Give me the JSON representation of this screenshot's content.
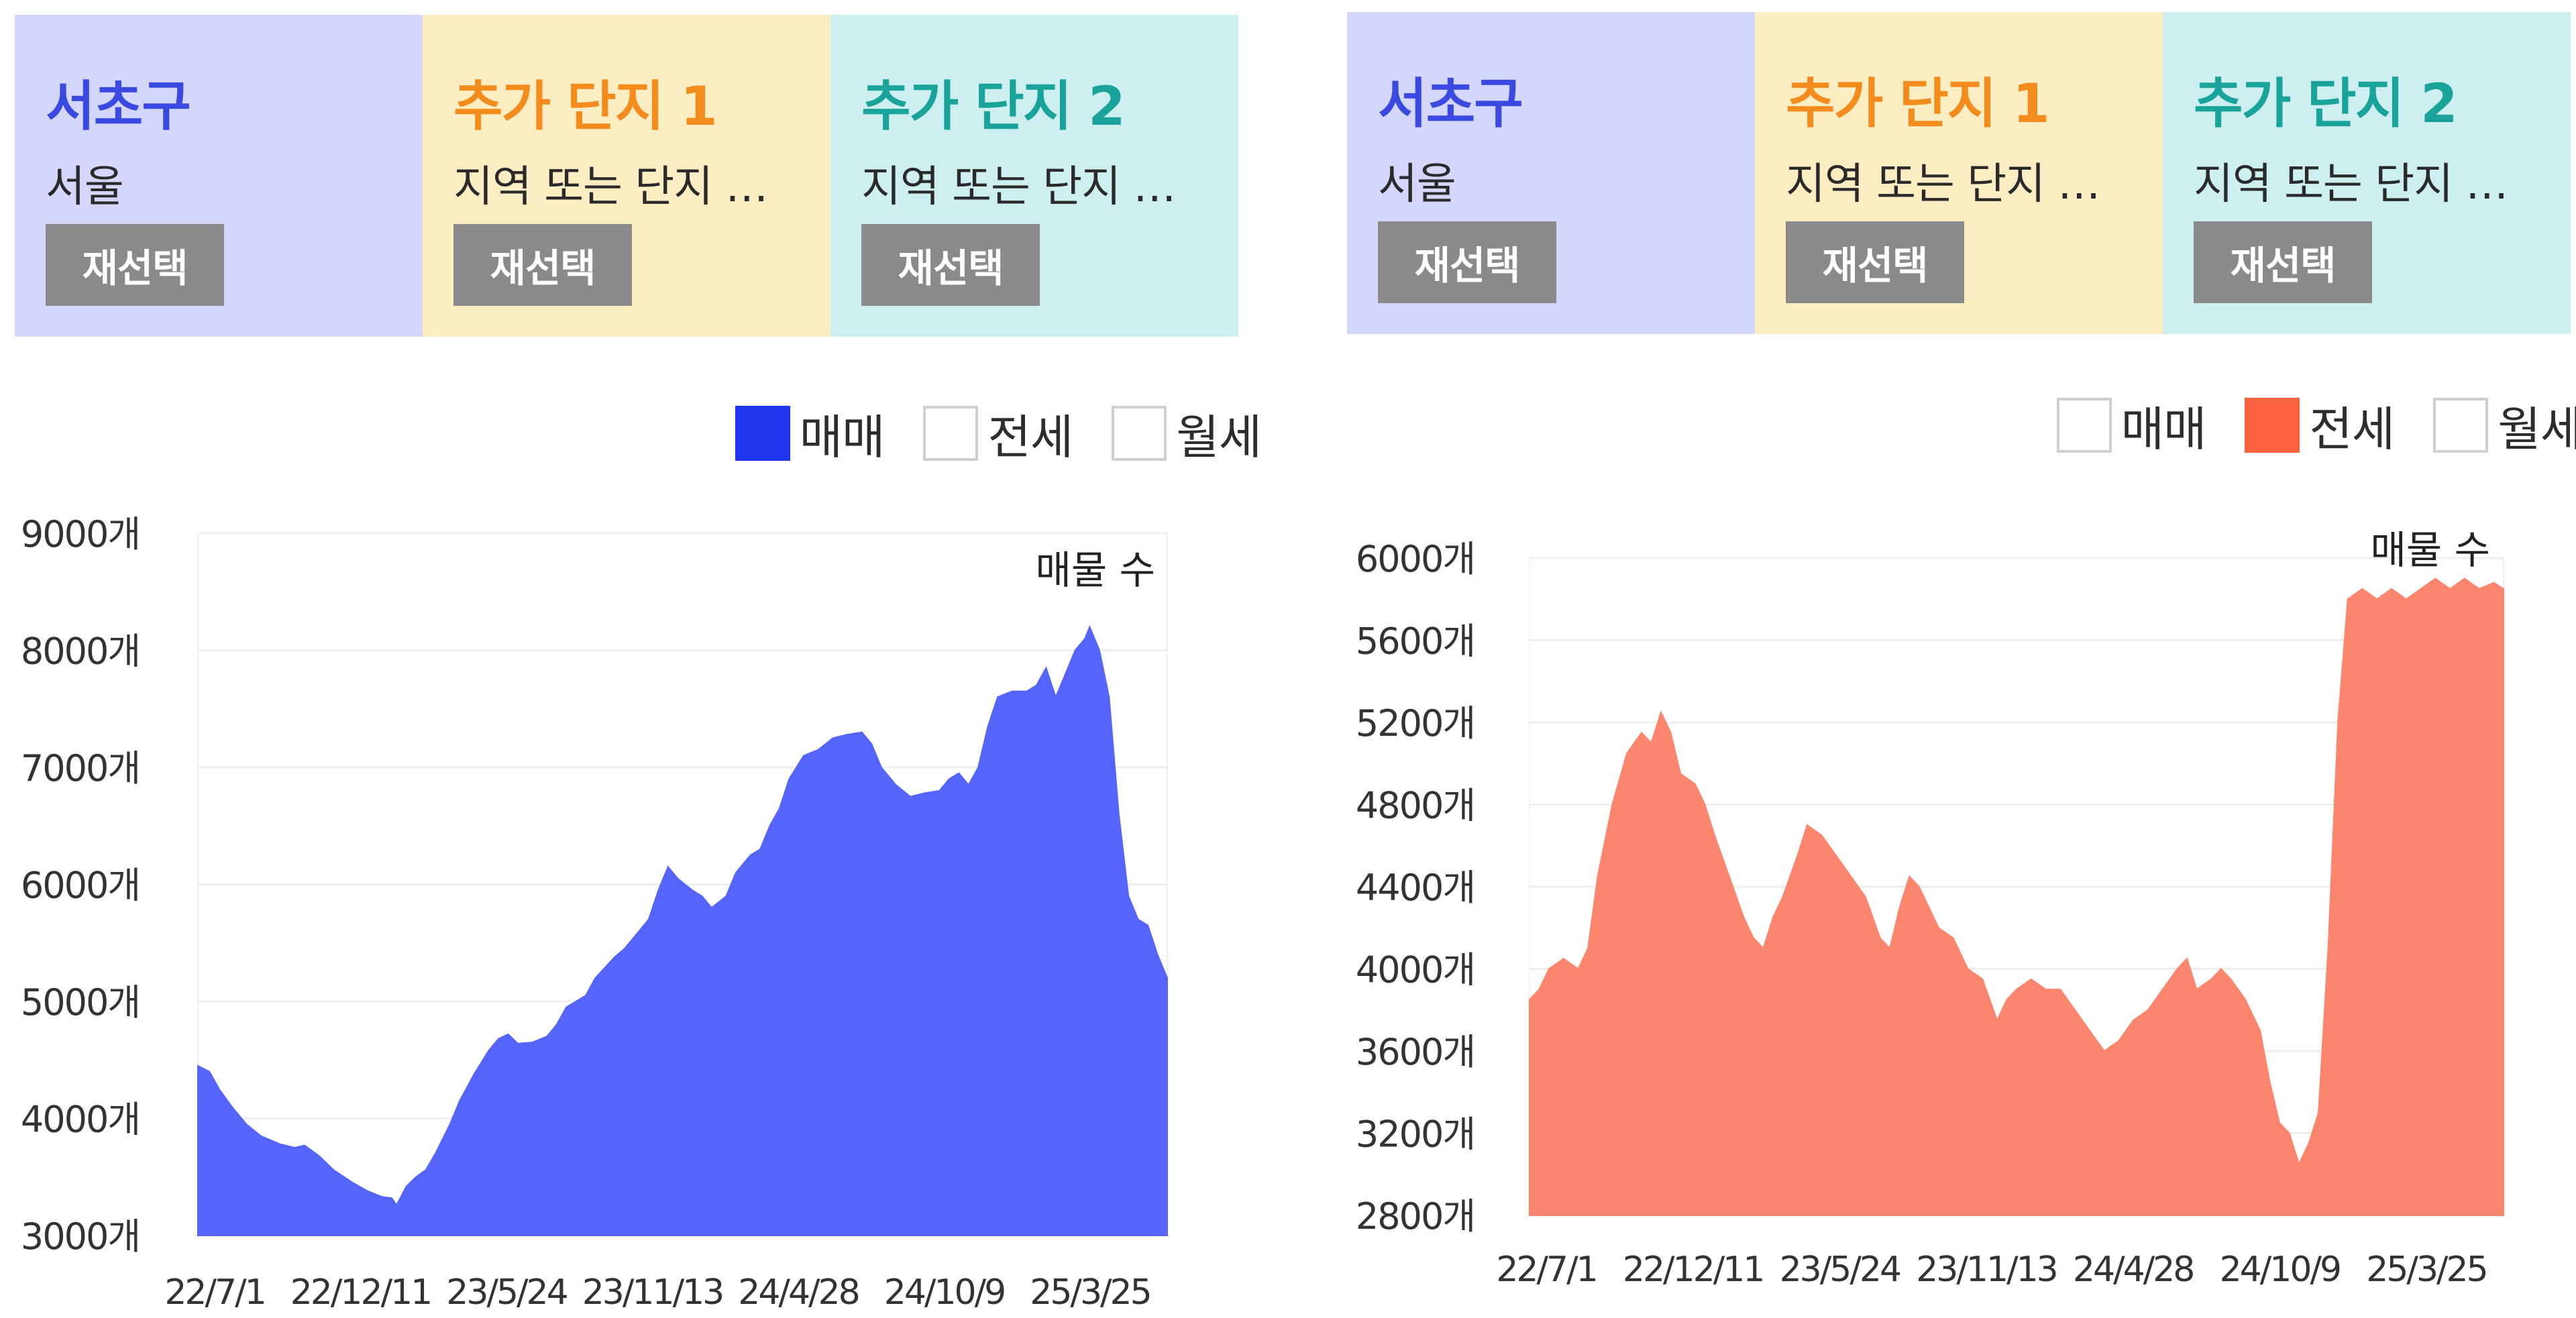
{
  "panels": [
    {
      "cards": [
        {
          "title": "서초구",
          "subtitle": "서울",
          "button": "재선택",
          "bg": "#d4d7fb",
          "titleColor": "#3a49e0"
        },
        {
          "title": "추가 단지 1",
          "subtitle": "지역 또는 단지 …",
          "button": "재선택",
          "bg": "#fdedc2",
          "titleColor": "#f38b1d"
        },
        {
          "title": "추가 단지 2",
          "subtitle": "지역 또는 단지 …",
          "button": "재선택",
          "bg": "#cdeff0",
          "titleColor": "#1aa39a"
        }
      ],
      "legend": [
        {
          "label": "매매",
          "checked": true,
          "color": "#1f36ee"
        },
        {
          "label": "전세",
          "checked": false,
          "color": "#f9613f"
        },
        {
          "label": "월세",
          "checked": false,
          "color": "#999999"
        }
      ]
    },
    {
      "cards": [
        {
          "title": "서초구",
          "subtitle": "서울",
          "button": "재선택",
          "bg": "#d4d7fb",
          "titleColor": "#3a49e0"
        },
        {
          "title": "추가 단지 1",
          "subtitle": "지역 또는 단지 …",
          "button": "재선택",
          "bg": "#fdedc2",
          "titleColor": "#f38b1d"
        },
        {
          "title": "추가 단지 2",
          "subtitle": "지역 또는 단지 …",
          "button": "재선택",
          "bg": "#cdeff0",
          "titleColor": "#1aa39a"
        }
      ],
      "legend": [
        {
          "label": "매매",
          "checked": false,
          "color": "#1f36ee"
        },
        {
          "label": "전세",
          "checked": true,
          "color": "#f9613f"
        },
        {
          "label": "월세",
          "checked": false,
          "color": "#999999"
        }
      ]
    }
  ],
  "chart_data": [
    {
      "type": "area",
      "series": [
        {
          "name": "매매",
          "color": "#5565f9"
        }
      ],
      "annotation": "매물 수",
      "y_unit": "개",
      "yticks": [
        3000,
        4000,
        5000,
        6000,
        7000,
        8000,
        9000
      ],
      "ylim": [
        3000,
        9000
      ],
      "x_ticks": [
        "22/7/1",
        "22/12/11",
        "23/5/24",
        "23/11/13",
        "24/4/28",
        "24/10/9",
        "25/3/25"
      ],
      "grid": true,
      "points": [
        [
          0,
          4450
        ],
        [
          0.012,
          4400
        ],
        [
          0.022,
          4250
        ],
        [
          0.035,
          4100
        ],
        [
          0.05,
          3950
        ],
        [
          0.065,
          3850
        ],
        [
          0.085,
          3780
        ],
        [
          0.1,
          3750
        ],
        [
          0.11,
          3770
        ],
        [
          0.125,
          3680
        ],
        [
          0.14,
          3560
        ],
        [
          0.16,
          3450
        ],
        [
          0.175,
          3380
        ],
        [
          0.19,
          3330
        ],
        [
          0.2,
          3320
        ],
        [
          0.205,
          3260
        ],
        [
          0.215,
          3420
        ],
        [
          0.225,
          3500
        ],
        [
          0.235,
          3560
        ],
        [
          0.245,
          3700
        ],
        [
          0.26,
          3950
        ],
        [
          0.27,
          4150
        ],
        [
          0.285,
          4380
        ],
        [
          0.3,
          4580
        ],
        [
          0.31,
          4680
        ],
        [
          0.32,
          4720
        ],
        [
          0.33,
          4640
        ],
        [
          0.345,
          4650
        ],
        [
          0.36,
          4700
        ],
        [
          0.37,
          4800
        ],
        [
          0.38,
          4950
        ],
        [
          0.4,
          5050
        ],
        [
          0.41,
          5200
        ],
        [
          0.43,
          5380
        ],
        [
          0.44,
          5450
        ],
        [
          0.455,
          5600
        ],
        [
          0.465,
          5700
        ],
        [
          0.475,
          5950
        ],
        [
          0.485,
          6150
        ],
        [
          0.495,
          6050
        ],
        [
          0.51,
          5950
        ],
        [
          0.52,
          5900
        ],
        [
          0.53,
          5800
        ],
        [
          0.545,
          5900
        ],
        [
          0.555,
          6100
        ],
        [
          0.57,
          6250
        ],
        [
          0.58,
          6300
        ],
        [
          0.59,
          6500
        ],
        [
          0.6,
          6650
        ],
        [
          0.61,
          6900
        ],
        [
          0.625,
          7100
        ],
        [
          0.64,
          7150
        ],
        [
          0.655,
          7250
        ],
        [
          0.67,
          7280
        ],
        [
          0.685,
          7300
        ],
        [
          0.695,
          7200
        ],
        [
          0.705,
          7000
        ],
        [
          0.72,
          6850
        ],
        [
          0.735,
          6750
        ],
        [
          0.75,
          6780
        ],
        [
          0.765,
          6800
        ],
        [
          0.775,
          6900
        ],
        [
          0.785,
          6950
        ],
        [
          0.795,
          6850
        ],
        [
          0.805,
          7000
        ],
        [
          0.815,
          7350
        ],
        [
          0.825,
          7600
        ],
        [
          0.84,
          7650
        ],
        [
          0.855,
          7650
        ],
        [
          0.865,
          7700
        ],
        [
          0.875,
          7850
        ],
        [
          0.885,
          7600
        ],
        [
          0.895,
          7800
        ],
        [
          0.905,
          8000
        ],
        [
          0.915,
          8100
        ],
        [
          0.92,
          8200
        ],
        [
          0.93,
          8000
        ],
        [
          0.94,
          7600
        ],
        [
          0.95,
          6600
        ],
        [
          0.96,
          5900
        ],
        [
          0.97,
          5700
        ],
        [
          0.98,
          5650
        ],
        [
          0.99,
          5400
        ],
        [
          1.0,
          5200
        ]
      ]
    },
    {
      "type": "area",
      "series": [
        {
          "name": "전세",
          "color": "#fc866d"
        }
      ],
      "annotation": "매물 수",
      "y_unit": "개",
      "yticks": [
        2800,
        3200,
        3600,
        4000,
        4400,
        4800,
        5200,
        5600,
        6000
      ],
      "ylim": [
        2800,
        6000
      ],
      "x_ticks": [
        "22/7/1",
        "22/12/11",
        "23/5/24",
        "23/11/13",
        "24/4/28",
        "24/10/9",
        "25/3/25"
      ],
      "grid": true,
      "points": [
        [
          0,
          3850
        ],
        [
          0.01,
          3900
        ],
        [
          0.02,
          4000
        ],
        [
          0.035,
          4050
        ],
        [
          0.05,
          4000
        ],
        [
          0.06,
          4100
        ],
        [
          0.07,
          4450
        ],
        [
          0.085,
          4800
        ],
        [
          0.1,
          5050
        ],
        [
          0.115,
          5150
        ],
        [
          0.125,
          5100
        ],
        [
          0.135,
          5250
        ],
        [
          0.145,
          5150
        ],
        [
          0.155,
          4950
        ],
        [
          0.17,
          4900
        ],
        [
          0.18,
          4800
        ],
        [
          0.19,
          4650
        ],
        [
          0.205,
          4450
        ],
        [
          0.22,
          4250
        ],
        [
          0.23,
          4150
        ],
        [
          0.24,
          4100
        ],
        [
          0.25,
          4250
        ],
        [
          0.26,
          4350
        ],
        [
          0.275,
          4550
        ],
        [
          0.285,
          4700
        ],
        [
          0.3,
          4650
        ],
        [
          0.315,
          4550
        ],
        [
          0.33,
          4450
        ],
        [
          0.345,
          4350
        ],
        [
          0.36,
          4150
        ],
        [
          0.37,
          4100
        ],
        [
          0.38,
          4300
        ],
        [
          0.39,
          4450
        ],
        [
          0.4,
          4400
        ],
        [
          0.41,
          4300
        ],
        [
          0.42,
          4200
        ],
        [
          0.435,
          4150
        ],
        [
          0.45,
          4000
        ],
        [
          0.465,
          3950
        ],
        [
          0.48,
          3750
        ],
        [
          0.49,
          3850
        ],
        [
          0.5,
          3900
        ],
        [
          0.515,
          3950
        ],
        [
          0.53,
          3900
        ],
        [
          0.545,
          3900
        ],
        [
          0.56,
          3800
        ],
        [
          0.575,
          3700
        ],
        [
          0.59,
          3600
        ],
        [
          0.605,
          3650
        ],
        [
          0.62,
          3750
        ],
        [
          0.635,
          3800
        ],
        [
          0.65,
          3900
        ],
        [
          0.665,
          4000
        ],
        [
          0.675,
          4050
        ],
        [
          0.685,
          3900
        ],
        [
          0.7,
          3950
        ],
        [
          0.71,
          4000
        ],
        [
          0.72,
          3950
        ],
        [
          0.735,
          3850
        ],
        [
          0.75,
          3700
        ],
        [
          0.76,
          3450
        ],
        [
          0.77,
          3250
        ],
        [
          0.78,
          3200
        ],
        [
          0.79,
          3050
        ],
        [
          0.8,
          3150
        ],
        [
          0.81,
          3300
        ],
        [
          0.82,
          4100
        ],
        [
          0.83,
          5200
        ],
        [
          0.84,
          5800
        ],
        [
          0.855,
          5850
        ],
        [
          0.87,
          5800
        ],
        [
          0.885,
          5850
        ],
        [
          0.9,
          5800
        ],
        [
          0.915,
          5850
        ],
        [
          0.93,
          5900
        ],
        [
          0.945,
          5850
        ],
        [
          0.96,
          5900
        ],
        [
          0.975,
          5850
        ],
        [
          0.99,
          5880
        ],
        [
          1.0,
          5850
        ]
      ]
    }
  ]
}
